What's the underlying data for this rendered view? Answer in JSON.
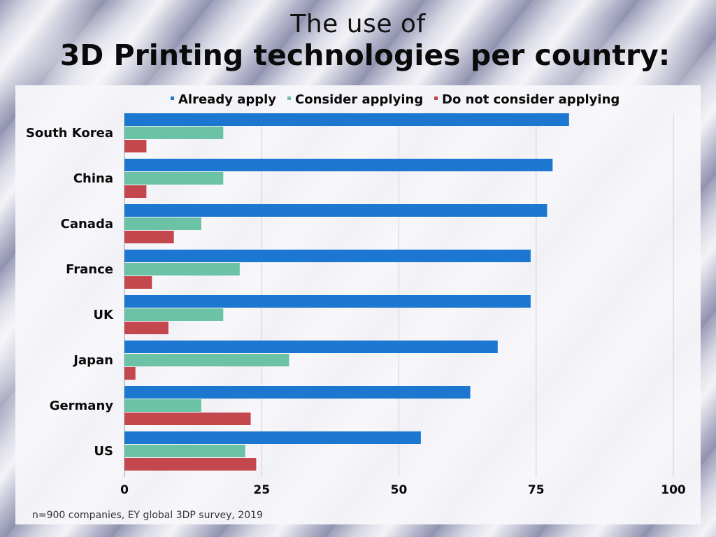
{
  "title": {
    "line1": "The use of",
    "line2": "3D Printing technologies per country:"
  },
  "footnote": "n=900 companies, EY global 3DP survey, 2019",
  "colors": {
    "already": "#1c77d0",
    "consider": "#6cc2a5",
    "not": "#c4474e",
    "grid": "#d0d0d6"
  },
  "chart_data": {
    "type": "bar",
    "orientation": "horizontal",
    "categories": [
      "South Korea",
      "China",
      "Canada",
      "France",
      "UK",
      "Japan",
      "Germany",
      "US"
    ],
    "series": [
      {
        "name": "Already apply",
        "values": [
          81,
          78,
          77,
          74,
          74,
          68,
          63,
          54
        ]
      },
      {
        "name": "Consider applying",
        "values": [
          18,
          18,
          14,
          21,
          18,
          30,
          14,
          22
        ]
      },
      {
        "name": "Do not consider applying",
        "values": [
          4,
          4,
          9,
          5,
          8,
          2,
          23,
          24
        ]
      }
    ],
    "xlim": [
      0,
      100
    ],
    "xticks": [
      0,
      25,
      50,
      75,
      100
    ],
    "grid": true,
    "legend_position": "top"
  }
}
